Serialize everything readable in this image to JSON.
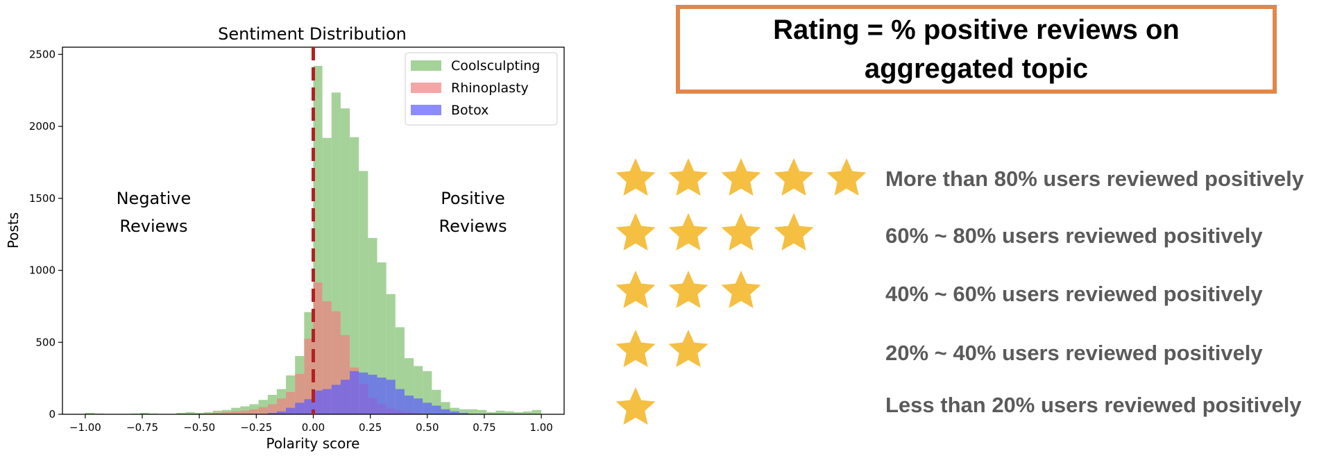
{
  "rating_box": {
    "line1": "Rating = % positive reviews on",
    "line2": "aggregated topic",
    "border_color": "#e0874a"
  },
  "star_legend": {
    "star_color": "#f5bf42",
    "rows": [
      {
        "stars": 5,
        "label": "More than 80% users reviewed positively"
      },
      {
        "stars": 4,
        "label": "60% ~ 80% users reviewed positively"
      },
      {
        "stars": 3,
        "label": "40% ~ 60% users reviewed positively"
      },
      {
        "stars": 2,
        "label": "20% ~ 40% users reviewed positively"
      },
      {
        "stars": 1,
        "label": "Less than 20% users reviewed positively"
      }
    ]
  },
  "chart_data": {
    "type": "histogram",
    "title": "Sentiment Distribution",
    "xlabel": "Polarity score",
    "ylabel": "Posts",
    "xlim": [
      -1.1,
      1.1
    ],
    "ylim": [
      0,
      2550
    ],
    "xticks": [
      -1.0,
      -0.75,
      -0.5,
      -0.25,
      0.0,
      0.25,
      0.5,
      0.75,
      1.0
    ],
    "xtick_labels": [
      "−1.00",
      "−0.75",
      "−0.50",
      "−0.25",
      "0.00",
      "0.25",
      "0.50",
      "0.75",
      "1.00"
    ],
    "yticks": [
      0,
      500,
      1000,
      1500,
      2000,
      2500
    ],
    "ytick_labels": [
      "0",
      "500",
      "1000",
      "1500",
      "2000",
      "2500"
    ],
    "grid": false,
    "legend_position": "top-right",
    "annotations": [
      {
        "lines": [
          "Negative",
          "Reviews"
        ],
        "x": -0.7,
        "y": 1500
      },
      {
        "lines": [
          "Positive",
          "Reviews"
        ],
        "x": 0.7,
        "y": 1500
      }
    ],
    "vline": {
      "x": 0.0,
      "color": "#b22222",
      "style": "dashed"
    },
    "series": [
      {
        "name": "Coolsculpting",
        "color": "#7fbf6e",
        "bins": [
          {
            "x0": -1.0,
            "x1": -0.96,
            "y": 10
          },
          {
            "x0": -0.96,
            "x1": -0.92,
            "y": 5
          },
          {
            "x0": -0.8,
            "x1": -0.76,
            "y": 5
          },
          {
            "x0": -0.76,
            "x1": -0.72,
            "y": 10
          },
          {
            "x0": -0.72,
            "x1": -0.68,
            "y": 5
          },
          {
            "x0": -0.6,
            "x1": -0.56,
            "y": 10
          },
          {
            "x0": -0.56,
            "x1": -0.52,
            "y": 15
          },
          {
            "x0": -0.52,
            "x1": -0.48,
            "y": 10
          },
          {
            "x0": -0.48,
            "x1": -0.44,
            "y": 15
          },
          {
            "x0": -0.44,
            "x1": -0.4,
            "y": 25
          },
          {
            "x0": -0.4,
            "x1": -0.36,
            "y": 30
          },
          {
            "x0": -0.36,
            "x1": -0.32,
            "y": 45
          },
          {
            "x0": -0.32,
            "x1": -0.28,
            "y": 55
          },
          {
            "x0": -0.28,
            "x1": -0.24,
            "y": 70
          },
          {
            "x0": -0.24,
            "x1": -0.2,
            "y": 100
          },
          {
            "x0": -0.2,
            "x1": -0.16,
            "y": 135
          },
          {
            "x0": -0.16,
            "x1": -0.12,
            "y": 175
          },
          {
            "x0": -0.12,
            "x1": -0.08,
            "y": 270
          },
          {
            "x0": -0.08,
            "x1": -0.04,
            "y": 405
          },
          {
            "x0": -0.04,
            "x1": 0.0,
            "y": 710
          },
          {
            "x0": 0.0,
            "x1": 0.04,
            "y": 2420
          },
          {
            "x0": 0.04,
            "x1": 0.08,
            "y": 1920
          },
          {
            "x0": 0.08,
            "x1": 0.12,
            "y": 2235
          },
          {
            "x0": 0.12,
            "x1": 0.16,
            "y": 2125
          },
          {
            "x0": 0.16,
            "x1": 0.2,
            "y": 1925
          },
          {
            "x0": 0.2,
            "x1": 0.24,
            "y": 1690
          },
          {
            "x0": 0.24,
            "x1": 0.28,
            "y": 1225
          },
          {
            "x0": 0.28,
            "x1": 0.32,
            "y": 1055
          },
          {
            "x0": 0.32,
            "x1": 0.36,
            "y": 835
          },
          {
            "x0": 0.36,
            "x1": 0.4,
            "y": 605
          },
          {
            "x0": 0.4,
            "x1": 0.44,
            "y": 390
          },
          {
            "x0": 0.44,
            "x1": 0.48,
            "y": 335
          },
          {
            "x0": 0.48,
            "x1": 0.52,
            "y": 300
          },
          {
            "x0": 0.52,
            "x1": 0.56,
            "y": 170
          },
          {
            "x0": 0.56,
            "x1": 0.6,
            "y": 85
          },
          {
            "x0": 0.6,
            "x1": 0.64,
            "y": 45
          },
          {
            "x0": 0.64,
            "x1": 0.68,
            "y": 35
          },
          {
            "x0": 0.68,
            "x1": 0.72,
            "y": 35
          },
          {
            "x0": 0.72,
            "x1": 0.76,
            "y": 30
          },
          {
            "x0": 0.76,
            "x1": 0.8,
            "y": 15
          },
          {
            "x0": 0.8,
            "x1": 0.84,
            "y": 25
          },
          {
            "x0": 0.84,
            "x1": 0.88,
            "y": 20
          },
          {
            "x0": 0.88,
            "x1": 0.92,
            "y": 15
          },
          {
            "x0": 0.92,
            "x1": 0.96,
            "y": 20
          },
          {
            "x0": 0.96,
            "x1": 1.0,
            "y": 30
          }
        ]
      },
      {
        "name": "Rhinoplasty",
        "color": "#f08080",
        "bins": [
          {
            "x0": -0.48,
            "x1": -0.44,
            "y": 5
          },
          {
            "x0": -0.44,
            "x1": -0.4,
            "y": 10
          },
          {
            "x0": -0.4,
            "x1": -0.36,
            "y": 15
          },
          {
            "x0": -0.36,
            "x1": -0.32,
            "y": 20
          },
          {
            "x0": -0.32,
            "x1": -0.28,
            "y": 25
          },
          {
            "x0": -0.28,
            "x1": -0.24,
            "y": 35
          },
          {
            "x0": -0.24,
            "x1": -0.2,
            "y": 50
          },
          {
            "x0": -0.2,
            "x1": -0.16,
            "y": 70
          },
          {
            "x0": -0.16,
            "x1": -0.12,
            "y": 110
          },
          {
            "x0": -0.12,
            "x1": -0.08,
            "y": 155
          },
          {
            "x0": -0.08,
            "x1": -0.04,
            "y": 280
          },
          {
            "x0": -0.04,
            "x1": 0.0,
            "y": 525
          },
          {
            "x0": 0.0,
            "x1": 0.04,
            "y": 915
          },
          {
            "x0": 0.04,
            "x1": 0.08,
            "y": 785
          },
          {
            "x0": 0.08,
            "x1": 0.12,
            "y": 715
          },
          {
            "x0": 0.12,
            "x1": 0.16,
            "y": 550
          },
          {
            "x0": 0.16,
            "x1": 0.2,
            "y": 325
          },
          {
            "x0": 0.2,
            "x1": 0.24,
            "y": 210
          },
          {
            "x0": 0.24,
            "x1": 0.28,
            "y": 115
          },
          {
            "x0": 0.28,
            "x1": 0.32,
            "y": 70
          },
          {
            "x0": 0.32,
            "x1": 0.36,
            "y": 40
          },
          {
            "x0": 0.36,
            "x1": 0.4,
            "y": 25
          },
          {
            "x0": 0.4,
            "x1": 0.44,
            "y": 15
          },
          {
            "x0": 0.44,
            "x1": 0.48,
            "y": 10
          }
        ]
      },
      {
        "name": "Botox",
        "color": "#5b5bff",
        "bins": [
          {
            "x0": -0.2,
            "x1": -0.16,
            "y": 10
          },
          {
            "x0": -0.16,
            "x1": -0.12,
            "y": 20
          },
          {
            "x0": -0.12,
            "x1": -0.08,
            "y": 45
          },
          {
            "x0": -0.08,
            "x1": -0.04,
            "y": 80
          },
          {
            "x0": -0.04,
            "x1": 0.0,
            "y": 105
          },
          {
            "x0": 0.0,
            "x1": 0.04,
            "y": 165
          },
          {
            "x0": 0.04,
            "x1": 0.08,
            "y": 175
          },
          {
            "x0": 0.08,
            "x1": 0.12,
            "y": 205
          },
          {
            "x0": 0.12,
            "x1": 0.16,
            "y": 240
          },
          {
            "x0": 0.16,
            "x1": 0.2,
            "y": 300
          },
          {
            "x0": 0.2,
            "x1": 0.24,
            "y": 290
          },
          {
            "x0": 0.24,
            "x1": 0.28,
            "y": 275
          },
          {
            "x0": 0.28,
            "x1": 0.32,
            "y": 255
          },
          {
            "x0": 0.32,
            "x1": 0.36,
            "y": 240
          },
          {
            "x0": 0.36,
            "x1": 0.4,
            "y": 175
          },
          {
            "x0": 0.4,
            "x1": 0.44,
            "y": 130
          },
          {
            "x0": 0.44,
            "x1": 0.48,
            "y": 110
          },
          {
            "x0": 0.48,
            "x1": 0.52,
            "y": 80
          },
          {
            "x0": 0.52,
            "x1": 0.56,
            "y": 60
          },
          {
            "x0": 0.56,
            "x1": 0.6,
            "y": 35
          },
          {
            "x0": 0.6,
            "x1": 0.64,
            "y": 20
          },
          {
            "x0": 0.64,
            "x1": 0.68,
            "y": 10
          }
        ]
      }
    ]
  }
}
